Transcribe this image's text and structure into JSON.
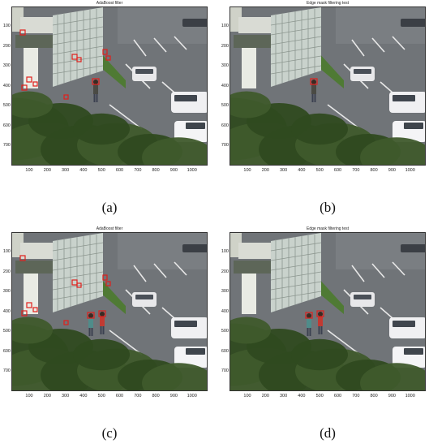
{
  "panels": [
    {
      "title": "AdaBoost filter",
      "caption": "(a)",
      "people": 1,
      "detections": "many"
    },
    {
      "title": "Edge mask filtering test",
      "caption": "(b)",
      "people": 1,
      "detections": "few"
    },
    {
      "title": "AdaBoost filter",
      "caption": "(c)",
      "people": 2,
      "detections": "many"
    },
    {
      "title": "Edge mask filtering test",
      "caption": "(d)",
      "people": 2,
      "detections": "few"
    }
  ],
  "axes": {
    "y_ticks": [
      "100",
      "200",
      "300",
      "400",
      "500",
      "600",
      "700"
    ],
    "x_ticks": [
      "100",
      "200",
      "300",
      "400",
      "500",
      "600",
      "700",
      "800",
      "900",
      "1000"
    ]
  },
  "colors": {
    "detection_box": "#e0201c",
    "vegetation": "#3f5a2c",
    "asphalt": "#707478"
  }
}
